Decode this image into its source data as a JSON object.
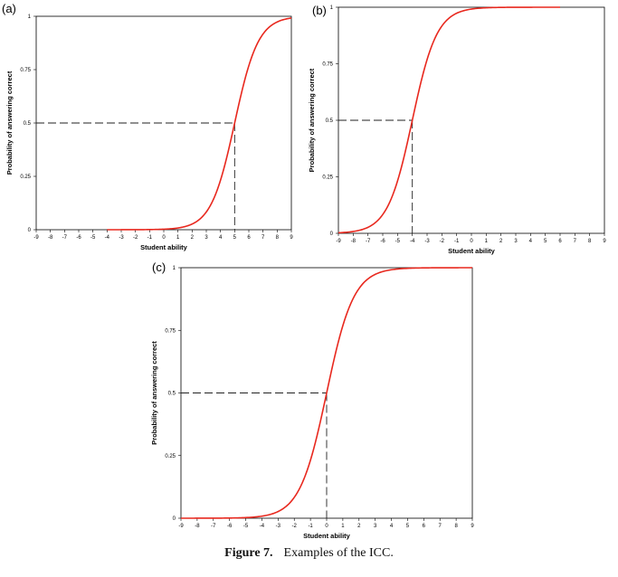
{
  "chart_data": [
    {
      "type": "line",
      "panel_label": "(a)",
      "xlabel": "Student ability",
      "ylabel": "Probability of answering correct",
      "xlim": [
        -9,
        9
      ],
      "ylim": [
        0,
        1
      ],
      "x_ticks": [
        "-9",
        "-8",
        "-7",
        "-6",
        "-5",
        "-4",
        "-3",
        "-2",
        "-1",
        "0",
        "1",
        "2",
        "3",
        "4",
        "5",
        "6",
        "7",
        "8",
        "9"
      ],
      "y_ticks": [
        "0",
        "0.25",
        "0.5",
        "0.75",
        "1"
      ],
      "curve": {
        "model": "logistic",
        "difficulty": 5.0,
        "discrimination": 1.2,
        "x_start": -4,
        "x_end": 9
      },
      "reference_point": {
        "x": 5.0,
        "y": 0.5
      },
      "grid": false,
      "legend": "none",
      "colors": {
        "curve": "#e8281e",
        "reference": "#222222"
      }
    },
    {
      "type": "line",
      "panel_label": "(b)",
      "xlabel": "Student ability",
      "ylabel": "Probability of answering correct",
      "xlim": [
        -9,
        9
      ],
      "ylim": [
        0,
        1
      ],
      "x_ticks": [
        "-9",
        "-8",
        "-7",
        "-6",
        "-5",
        "-4",
        "-3",
        "-2",
        "-1",
        "0",
        "1",
        "2",
        "3",
        "4",
        "5",
        "6",
        "7",
        "8",
        "9"
      ],
      "y_ticks": [
        "0",
        "0.25",
        "0.5",
        "0.75",
        "1"
      ],
      "curve": {
        "model": "logistic",
        "difficulty": -4.0,
        "discrimination": 1.2,
        "x_start": -9,
        "x_end": 6
      },
      "reference_point": {
        "x": -4.0,
        "y": 0.5
      },
      "grid": false,
      "legend": "none",
      "colors": {
        "curve": "#e8281e",
        "reference": "#222222"
      }
    },
    {
      "type": "line",
      "panel_label": "(c)",
      "xlabel": "Student ability",
      "ylabel": "Probability of answering correct",
      "xlim": [
        -9,
        9
      ],
      "ylim": [
        0,
        1
      ],
      "x_ticks": [
        "-9",
        "-8",
        "-7",
        "-6",
        "-5",
        "-4",
        "-3",
        "-2",
        "-1",
        "0",
        "1",
        "2",
        "3",
        "4",
        "5",
        "6",
        "7",
        "8",
        "9"
      ],
      "y_ticks": [
        "0",
        "0.25",
        "0.5",
        "0.75",
        "1"
      ],
      "curve": {
        "model": "logistic",
        "difficulty": 0.0,
        "discrimination": 1.2,
        "x_start": -9,
        "x_end": 9
      },
      "reference_point": {
        "x": 0.0,
        "y": 0.5
      },
      "grid": false,
      "legend": "none",
      "colors": {
        "curve": "#e8281e",
        "reference": "#222222"
      }
    }
  ],
  "caption": {
    "label": "Figure 7.",
    "text": "Examples of the ICC."
  }
}
